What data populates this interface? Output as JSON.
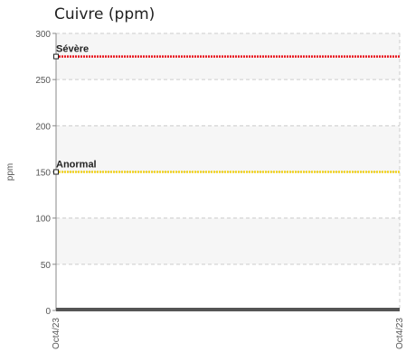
{
  "chart_data": {
    "type": "line",
    "title": "Cuivre (ppm)",
    "ylabel": "ppm",
    "xlabel": "",
    "ylim": [
      0,
      300
    ],
    "y_ticks": [
      0,
      50,
      100,
      150,
      200,
      250,
      300
    ],
    "x_ticks": [
      "Oct4/23",
      "Oct4/23"
    ],
    "grid": true,
    "reference_lines": [
      {
        "label": "Sévère",
        "value": 275,
        "color": "#e8141c"
      },
      {
        "label": "Anormal",
        "value": 150,
        "color": "#f2d21a"
      }
    ],
    "series": [
      {
        "x": [
          "Oct4/23",
          "Oct4/23"
        ],
        "values": [
          1,
          1
        ],
        "color": "#555555"
      }
    ]
  }
}
